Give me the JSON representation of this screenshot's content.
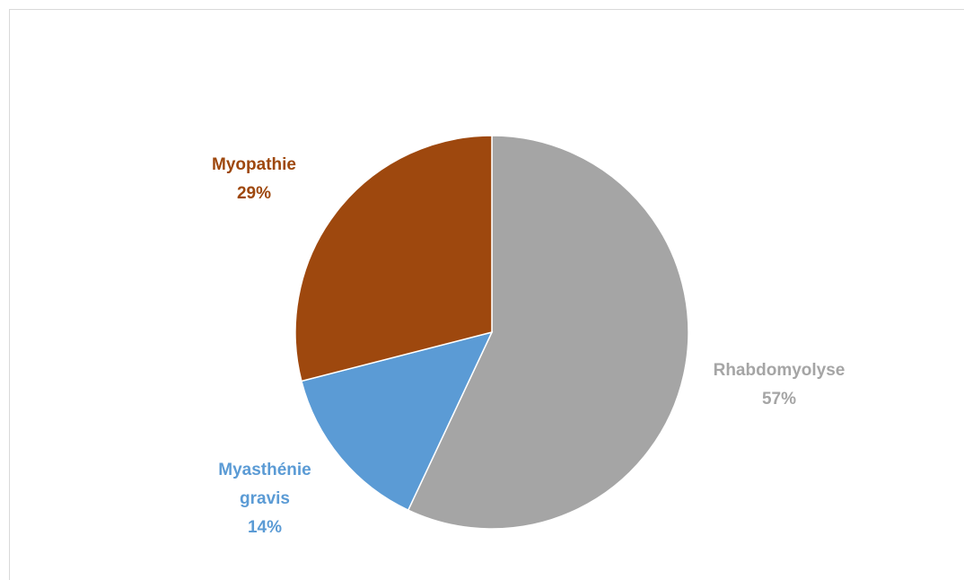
{
  "chart_data": {
    "type": "pie",
    "categories": [
      "Rhabdomyolyse",
      "Myasthénie gravis",
      "Myopathie"
    ],
    "values": [
      57,
      14,
      29
    ],
    "value_labels": [
      "57%",
      "14%",
      "29%"
    ],
    "colors": [
      "#a5a5a5",
      "#5b9bd5",
      "#9e480e"
    ]
  }
}
